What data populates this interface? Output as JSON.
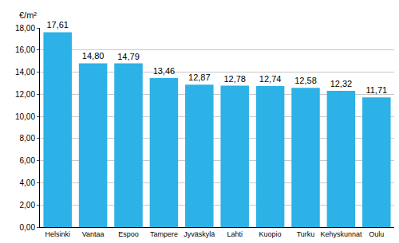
{
  "chart_data": {
    "type": "bar",
    "ylabel": "€/m²",
    "categories": [
      "Helsinki",
      "Vantaa",
      "Espoo",
      "Tampere",
      "Jyväskylä",
      "Lahti",
      "Kuopio",
      "Turku",
      "Kehyskunnat",
      "Oulu"
    ],
    "values": [
      17.61,
      14.8,
      14.79,
      13.46,
      12.87,
      12.78,
      12.74,
      12.58,
      12.32,
      11.71
    ],
    "value_labels": [
      "17,61",
      "14,80",
      "14,79",
      "13,46",
      "12,87",
      "12,78",
      "12,74",
      "12,58",
      "12,32",
      "11,71"
    ],
    "data_labels": true,
    "color": "#2cb2e6",
    "ylim": [
      0,
      18
    ],
    "yticks": [
      {
        "value": 0,
        "label": "0,00"
      },
      {
        "value": 2,
        "label": "2,00"
      },
      {
        "value": 4,
        "label": "4,00"
      },
      {
        "value": 6,
        "label": "6,00"
      },
      {
        "value": 8,
        "label": "8,00"
      },
      {
        "value": 10,
        "label": "10,00"
      },
      {
        "value": 12,
        "label": "12,00"
      },
      {
        "value": 14,
        "label": "14,00"
      },
      {
        "value": 16,
        "label": "16,00"
      },
      {
        "value": 18,
        "label": "18,00"
      }
    ],
    "grid": true
  }
}
